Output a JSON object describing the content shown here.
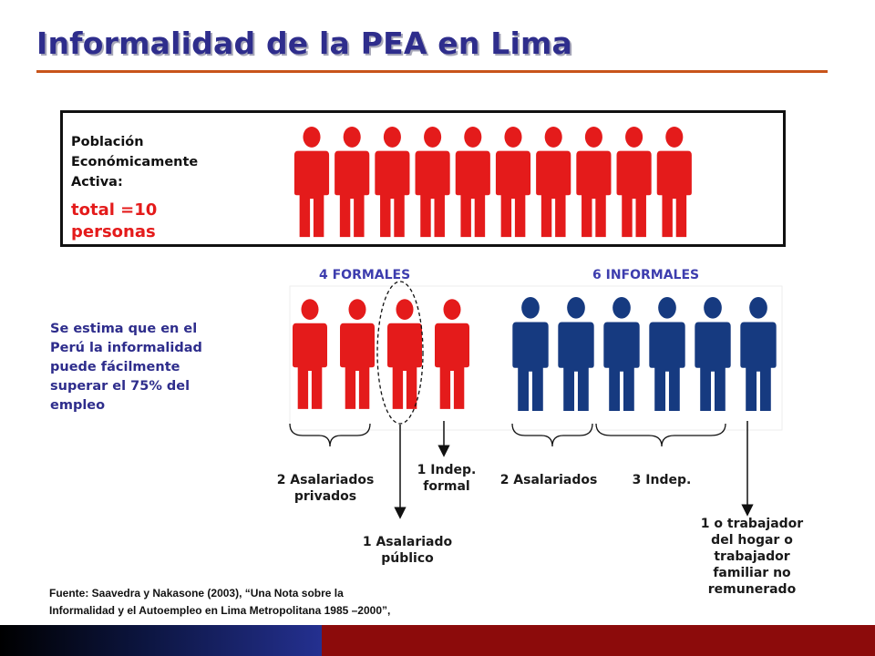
{
  "title": "Informalidad de la PEA en Lima",
  "pea": {
    "label_lines": [
      "Población",
      "Económicamente",
      "Activa:"
    ],
    "total_lines": [
      "total =10",
      "personas"
    ],
    "count": 10,
    "figure_color": "#e41b1b"
  },
  "groups": {
    "formal": {
      "label": "4 FORMALES",
      "count": 4,
      "color": "#e41b1b"
    },
    "informal": {
      "label": "6 INFORMALES",
      "count": 6,
      "color": "#163a80"
    }
  },
  "estimate_lines": [
    "Se estima que en el",
    "Perú la informalidad",
    "puede  fácilmente",
    "superar el 75% del",
    "empleo"
  ],
  "captions": {
    "asalariados_privados": [
      "2 Asalariados",
      "privados"
    ],
    "indep_formal": [
      "1 Indep.",
      "formal"
    ],
    "asalariado_publico": [
      "1 Asalariado",
      "público"
    ],
    "asalariados_informales": [
      "2 Asalariados"
    ],
    "indep_informales": [
      "3 Indep."
    ],
    "trabajador_hogar": [
      "1 o trabajador",
      "del hogar o",
      "trabajador",
      "familiar no",
      "remunerado"
    ]
  },
  "source_lines": [
    "Fuente: Saavedra y Nakasone (2003), “Una Nota sobre la",
    "Informalidad y el Autoempleo en Lima Metropolitana 1985 –2000”,"
  ],
  "colors": {
    "title": "#2e2d8c",
    "rule": "#c8541a",
    "accent_red": "#e41b1b",
    "accent_blue": "#163a80",
    "footer_dark": "#0c1540",
    "footer_red": "#8c0b0b"
  }
}
